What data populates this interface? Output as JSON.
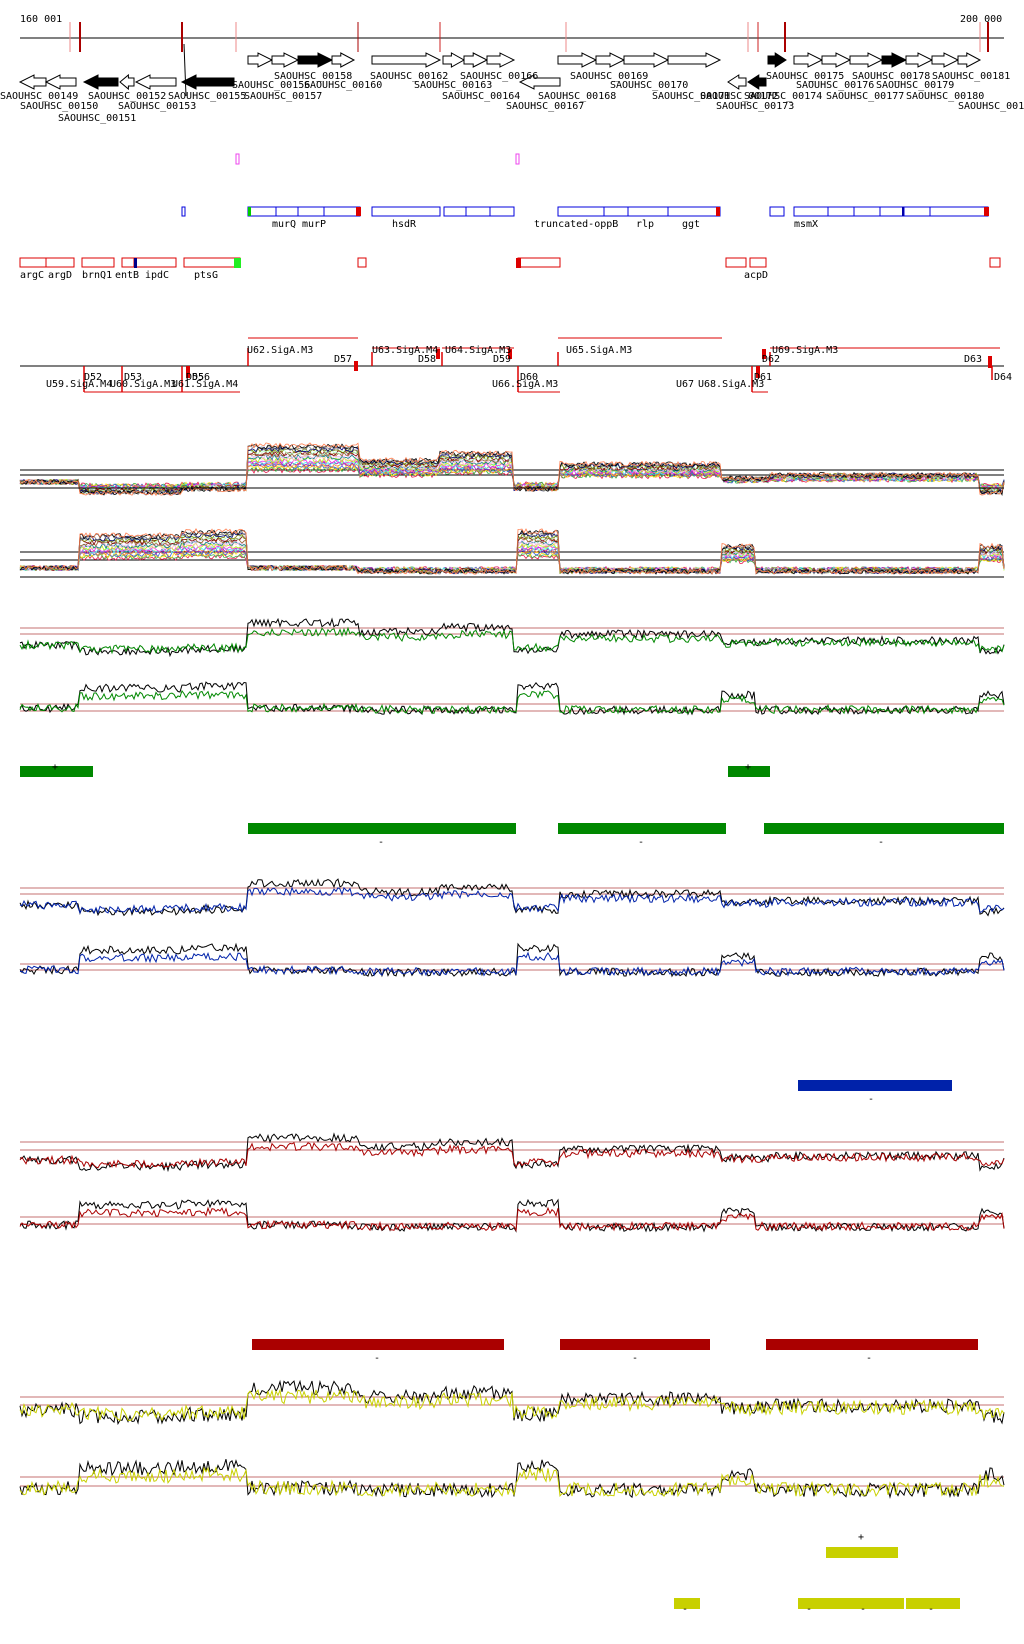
{
  "ruler": {
    "start_label": "160 001",
    "end_label": "200 000"
  },
  "genes": [
    {
      "label": "SAOUHSC_00149"
    },
    {
      "label": "SAOUHSC_00150"
    },
    {
      "label": "SAOUHSC_00151"
    },
    {
      "label": "SAOUHSC_00152"
    },
    {
      "label": "SAOUHSC_00153"
    },
    {
      "label": "SAOUHSC_00155"
    },
    {
      "label": "SAOUHSC_00156"
    },
    {
      "label": "SAOUHSC_00157"
    },
    {
      "label": "SAOUHSC_00158"
    },
    {
      "label": "SAOUHSC_00160"
    },
    {
      "label": "SAOUHSC_00162"
    },
    {
      "label": "SAOUHSC_00163"
    },
    {
      "label": "SAOUHSC_00164"
    },
    {
      "label": "SAOUHSC_00166"
    },
    {
      "label": "SAOUHSC_00167"
    },
    {
      "label": "SAOUHSC_00168"
    },
    {
      "label": "SAOUHSC_00169"
    },
    {
      "label": "SAOUHSC_00170"
    },
    {
      "label": "SAOUHSC_00171"
    },
    {
      "label": "SAOUHSC_00172"
    },
    {
      "label": "SAOUHSC_00173"
    },
    {
      "label": "SAOUHSC_00174"
    },
    {
      "label": "SAOUHSC_00175"
    },
    {
      "label": "SAOUHSC_00176"
    },
    {
      "label": "SAOUHSC_00177"
    },
    {
      "label": "SAOUHSC_00178"
    },
    {
      "label": "SAOUHSC_00179"
    },
    {
      "label": "SAOUHSC_00180"
    },
    {
      "label": "SAOUHSC_00181"
    },
    {
      "label": "SAOUHSC_001"
    }
  ],
  "blue_operon_labels": [
    "murQ",
    "murP",
    "hsdR",
    "truncated-oppB",
    "rlp",
    "ggt",
    "msmX"
  ],
  "red_operon_labels": [
    "argC",
    "argD",
    "brnQ1",
    "entB",
    "ipdC",
    "ptsG",
    "acpD"
  ],
  "promoters": [
    {
      "label": "U62.SigA.M3"
    },
    {
      "label": "U63.SigA.M4"
    },
    {
      "label": "U64.SigA.M3"
    },
    {
      "label": "U65.SigA.M3"
    },
    {
      "label": "U69.SigA.M3"
    },
    {
      "label": "U59.SigA.M4"
    },
    {
      "label": "U60.SigA.M3"
    },
    {
      "label": "U61.SigA.M4"
    },
    {
      "label": "U66.SigA.M3"
    },
    {
      "label": "U67"
    },
    {
      "label": "U68.SigA.M3"
    }
  ],
  "terminators": [
    {
      "label": "D52"
    },
    {
      "label": "D53"
    },
    {
      "label": "D55"
    },
    {
      "label": "D56"
    },
    {
      "label": "D57"
    },
    {
      "label": "D58"
    },
    {
      "label": "D59"
    },
    {
      "label": "D60"
    },
    {
      "label": "D61"
    },
    {
      "label": "D62"
    },
    {
      "label": "D63"
    },
    {
      "label": "D64"
    }
  ],
  "segments": {
    "plus": "+",
    "minus": "-"
  },
  "colors": {
    "green": "#008800",
    "blue": "#0022aa",
    "red": "#aa0000",
    "yellow": "#c8d000",
    "gene_blue": "#0000dd",
    "operon_red": "#dd0000",
    "pink": "#ee44ee"
  }
}
